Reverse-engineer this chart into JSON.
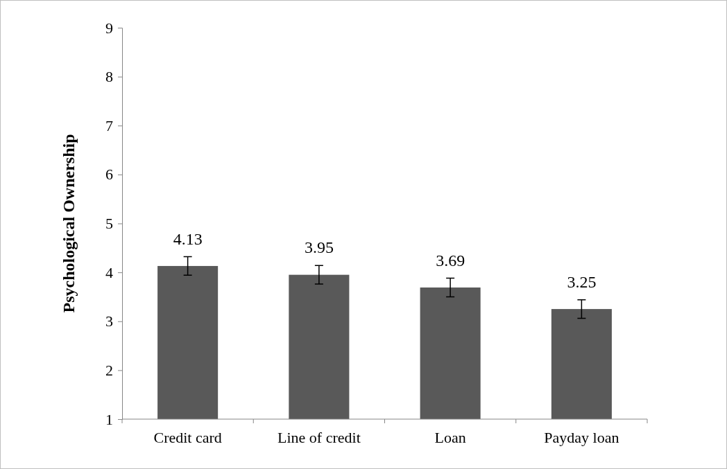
{
  "chart_data": {
    "type": "bar",
    "ylabel": "Psychological Ownership",
    "categories": [
      "Credit card",
      "Line of credit",
      "Loan",
      "Payday loan"
    ],
    "values": [
      4.13,
      3.95,
      3.69,
      3.25
    ],
    "errors": [
      0.19,
      0.19,
      0.19,
      0.19
    ],
    "color": "#595959",
    "ylim": [
      1,
      9
    ],
    "yticks": [
      1,
      2,
      3,
      4,
      5,
      6,
      7,
      8,
      9
    ],
    "data_labels": true,
    "grid": false
  }
}
